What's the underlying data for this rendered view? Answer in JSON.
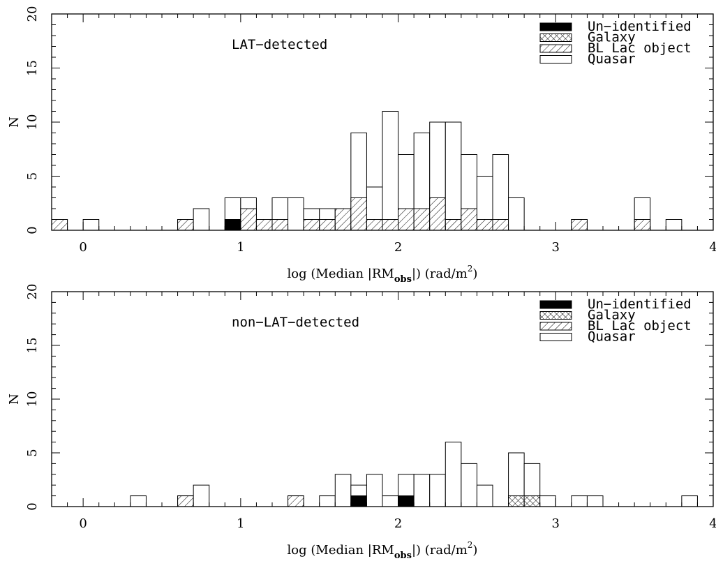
{
  "chart_data": [
    {
      "type": "bar",
      "annotation": "LAT−detected",
      "xlabel": {
        "prefix": "log (Median |RM",
        "subscript": "obs",
        "middle": "|) (rad/m",
        "superscript": "2",
        "suffix": ")"
      },
      "ylabel": "N",
      "xlim": [
        -0.2,
        4.0
      ],
      "ylim": [
        0,
        20
      ],
      "x_ticks": [
        0,
        1,
        2,
        3,
        4
      ],
      "y_ticks": [
        0,
        5,
        10,
        15,
        20
      ],
      "bin_width": 0.1,
      "legend": {
        "position": "top-right",
        "entries": [
          {
            "label": "Un−identified",
            "key": "unidentified"
          },
          {
            "label": "Galaxy",
            "key": "galaxy"
          },
          {
            "label": "BL Lac object",
            "key": "bllac"
          },
          {
            "label": "Quasar",
            "key": "quasar"
          }
        ]
      },
      "bins": [
        {
          "x0": -0.2,
          "unidentified": 0,
          "galaxy": 0,
          "bllac": 1,
          "total": 1
        },
        {
          "x0": 0.0,
          "unidentified": 0,
          "galaxy": 0,
          "bllac": 0,
          "total": 1
        },
        {
          "x0": 0.6,
          "unidentified": 0,
          "galaxy": 0,
          "bllac": 1,
          "total": 1
        },
        {
          "x0": 0.7,
          "unidentified": 0,
          "galaxy": 0,
          "bllac": 0,
          "total": 2
        },
        {
          "x0": 0.9,
          "unidentified": 1,
          "galaxy": 0,
          "bllac": 0,
          "total": 3
        },
        {
          "x0": 1.0,
          "unidentified": 0,
          "galaxy": 0,
          "bllac": 2,
          "total": 3
        },
        {
          "x0": 1.1,
          "unidentified": 0,
          "galaxy": 0,
          "bllac": 1,
          "total": 1
        },
        {
          "x0": 1.2,
          "unidentified": 0,
          "galaxy": 0,
          "bllac": 1,
          "total": 3
        },
        {
          "x0": 1.3,
          "unidentified": 0,
          "galaxy": 0,
          "bllac": 0,
          "total": 3
        },
        {
          "x0": 1.4,
          "unidentified": 0,
          "galaxy": 0,
          "bllac": 1,
          "total": 2
        },
        {
          "x0": 1.5,
          "unidentified": 0,
          "galaxy": 0,
          "bllac": 1,
          "total": 2
        },
        {
          "x0": 1.6,
          "unidentified": 0,
          "galaxy": 0,
          "bllac": 2,
          "total": 2
        },
        {
          "x0": 1.7,
          "unidentified": 0,
          "galaxy": 0,
          "bllac": 3,
          "total": 9
        },
        {
          "x0": 1.8,
          "unidentified": 0,
          "galaxy": 0,
          "bllac": 1,
          "total": 4
        },
        {
          "x0": 1.9,
          "unidentified": 0,
          "galaxy": 0,
          "bllac": 1,
          "total": 11
        },
        {
          "x0": 2.0,
          "unidentified": 0,
          "galaxy": 0,
          "bllac": 2,
          "total": 7
        },
        {
          "x0": 2.1,
          "unidentified": 0,
          "galaxy": 0,
          "bllac": 2,
          "total": 9
        },
        {
          "x0": 2.2,
          "unidentified": 0,
          "galaxy": 0,
          "bllac": 3,
          "total": 10
        },
        {
          "x0": 2.3,
          "unidentified": 0,
          "galaxy": 0,
          "bllac": 1,
          "total": 10
        },
        {
          "x0": 2.4,
          "unidentified": 0,
          "galaxy": 0,
          "bllac": 2,
          "total": 7
        },
        {
          "x0": 2.5,
          "unidentified": 0,
          "galaxy": 0,
          "bllac": 1,
          "total": 5
        },
        {
          "x0": 2.6,
          "unidentified": 0,
          "galaxy": 0,
          "bllac": 1,
          "total": 7
        },
        {
          "x0": 2.7,
          "unidentified": 0,
          "galaxy": 0,
          "bllac": 0,
          "total": 3
        },
        {
          "x0": 3.1,
          "unidentified": 0,
          "galaxy": 0,
          "bllac": 1,
          "total": 1
        },
        {
          "x0": 3.5,
          "unidentified": 0,
          "galaxy": 0,
          "bllac": 1,
          "total": 3
        },
        {
          "x0": 3.7,
          "unidentified": 0,
          "galaxy": 0,
          "bllac": 0,
          "total": 1
        }
      ]
    },
    {
      "type": "bar",
      "annotation": "non−LAT−detected",
      "xlabel": {
        "prefix": "log (Median |RM",
        "subscript": "obs",
        "middle": "|) (rad/m",
        "superscript": "2",
        "suffix": ")"
      },
      "ylabel": "N",
      "xlim": [
        -0.2,
        4.0
      ],
      "ylim": [
        0,
        20
      ],
      "x_ticks": [
        0,
        1,
        2,
        3,
        4
      ],
      "y_ticks": [
        0,
        5,
        10,
        15,
        20
      ],
      "bin_width": 0.1,
      "legend": {
        "position": "top-right",
        "entries": [
          {
            "label": "Un−identified",
            "key": "unidentified"
          },
          {
            "label": "Galaxy",
            "key": "galaxy"
          },
          {
            "label": "BL Lac object",
            "key": "bllac"
          },
          {
            "label": "Quasar",
            "key": "quasar"
          }
        ]
      },
      "bins": [
        {
          "x0": 0.3,
          "unidentified": 0,
          "galaxy": 0,
          "bllac": 0,
          "total": 1
        },
        {
          "x0": 0.6,
          "unidentified": 0,
          "galaxy": 0,
          "bllac": 1,
          "total": 1
        },
        {
          "x0": 0.7,
          "unidentified": 0,
          "galaxy": 0,
          "bllac": 0,
          "total": 2
        },
        {
          "x0": 1.3,
          "unidentified": 0,
          "galaxy": 0,
          "bllac": 1,
          "total": 1
        },
        {
          "x0": 1.5,
          "unidentified": 0,
          "galaxy": 0,
          "bllac": 0,
          "total": 1
        },
        {
          "x0": 1.6,
          "unidentified": 0,
          "galaxy": 0,
          "bllac": 0,
          "total": 3
        },
        {
          "x0": 1.7,
          "unidentified": 1,
          "galaxy": 0,
          "bllac": 0,
          "total": 2
        },
        {
          "x0": 1.8,
          "unidentified": 0,
          "galaxy": 0,
          "bllac": 0,
          "total": 3
        },
        {
          "x0": 1.9,
          "unidentified": 0,
          "galaxy": 0,
          "bllac": 0,
          "total": 1
        },
        {
          "x0": 2.0,
          "unidentified": 1,
          "galaxy": 0,
          "bllac": 0,
          "total": 3
        },
        {
          "x0": 2.1,
          "unidentified": 0,
          "galaxy": 0,
          "bllac": 0,
          "total": 3
        },
        {
          "x0": 2.2,
          "unidentified": 0,
          "galaxy": 0,
          "bllac": 0,
          "total": 3
        },
        {
          "x0": 2.3,
          "unidentified": 0,
          "galaxy": 0,
          "bllac": 0,
          "total": 6
        },
        {
          "x0": 2.4,
          "unidentified": 0,
          "galaxy": 0,
          "bllac": 0,
          "total": 4
        },
        {
          "x0": 2.5,
          "unidentified": 0,
          "galaxy": 0,
          "bllac": 0,
          "total": 2
        },
        {
          "x0": 2.7,
          "unidentified": 0,
          "galaxy": 1,
          "bllac": 0,
          "total": 5
        },
        {
          "x0": 2.8,
          "unidentified": 0,
          "galaxy": 1,
          "bllac": 0,
          "total": 4
        },
        {
          "x0": 2.9,
          "unidentified": 0,
          "galaxy": 0,
          "bllac": 0,
          "total": 1
        },
        {
          "x0": 3.1,
          "unidentified": 0,
          "galaxy": 0,
          "bllac": 0,
          "total": 1
        },
        {
          "x0": 3.2,
          "unidentified": 0,
          "galaxy": 0,
          "bllac": 0,
          "total": 1
        },
        {
          "x0": 3.8,
          "unidentified": 0,
          "galaxy": 0,
          "bllac": 0,
          "total": 1
        }
      ]
    }
  ]
}
